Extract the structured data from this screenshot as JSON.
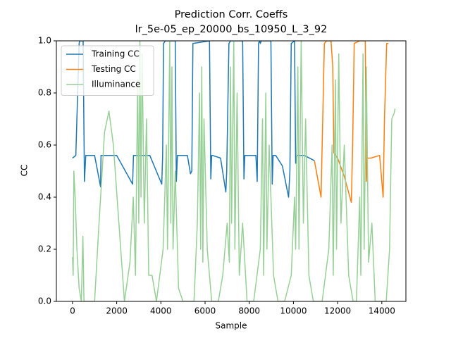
{
  "chart_data": {
    "type": "line",
    "title": "Prediction Corr. Coeffs",
    "subtitle": "lr_5e-05_ep_20000_bs_10950_L_3_92",
    "x_label": "Sample",
    "y_label": "CC",
    "xlim": [
      -730,
      15090
    ],
    "ylim": [
      0,
      1
    ],
    "xticks": [
      0,
      2000,
      4000,
      6000,
      8000,
      10000,
      12000,
      14000
    ],
    "yticks": [
      {
        "value": 0,
        "label": "0.0"
      },
      0.2,
      0.4,
      0.6,
      0.8,
      {
        "value": 1,
        "label": "1.0"
      }
    ],
    "legend": "upper-left",
    "series": [
      {
        "name": "Training CC",
        "color": "#1f77b4",
        "x": [
          0,
          150,
          300,
          330,
          480,
          540,
          600,
          1000,
          1270,
          1290,
          1320,
          2000,
          2720,
          2760,
          2800,
          3500,
          4040,
          4080,
          4120,
          4200,
          4650,
          4700,
          4750,
          5000,
          5200,
          5340,
          5400,
          5450,
          6200,
          6260,
          6300,
          6350,
          6700,
          6940,
          6980,
          7080,
          7150,
          7700,
          7760,
          7800,
          7850,
          8300,
          8360,
          8420,
          8460,
          8500,
          8540,
          8980,
          9040,
          9080,
          9200,
          9500,
          9780,
          9840,
          9900,
          10050,
          10100,
          10150,
          10500,
          10950
        ],
        "values": [
          0.55,
          0.56,
          0.99,
          1,
          1,
          0.46,
          0.56,
          0.56,
          0.44,
          0.56,
          0.56,
          0.56,
          0.45,
          0.56,
          0.56,
          0.56,
          0.45,
          0.56,
          0.99,
          1,
          1,
          0.46,
          0.56,
          0.56,
          0.56,
          0.49,
          0.5,
          0.99,
          1,
          0.47,
          0.56,
          0.56,
          0.55,
          0.42,
          0.5,
          0.99,
          1,
          1,
          0.47,
          0.56,
          0.56,
          0.56,
          0.46,
          0.99,
          1,
          0.99,
          1,
          1,
          0.45,
          0.56,
          0.56,
          0.52,
          0.4,
          0.5,
          0.99,
          1,
          0.53,
          0.56,
          0.56,
          0.54
        ]
      },
      {
        "name": "Testing CC",
        "color": "#ff7f0e",
        "x": [
          10950,
          11100,
          11250,
          11300,
          11400,
          11500,
          11700,
          11780,
          11830,
          12000,
          12300,
          12620,
          12680,
          12750,
          13000,
          13250,
          13300,
          13350,
          13500,
          13900,
          14060,
          14120,
          14220,
          14300
        ],
        "values": [
          0.54,
          0.47,
          0.4,
          0.6,
          0.99,
          1,
          1,
          0.9,
          0.57,
          0.55,
          0.48,
          0.38,
          0.6,
          0.99,
          1,
          1,
          0.46,
          0.55,
          0.55,
          0.56,
          0.4,
          0.7,
          0.99,
          0.99
        ]
      },
      {
        "name": "Illuminance",
        "color": "#96d096",
        "x": [
          0,
          30,
          60,
          120,
          200,
          300,
          400,
          470,
          520,
          1000,
          1200,
          1450,
          1650,
          1850,
          2100,
          2350,
          2600,
          2750,
          2850,
          2950,
          3000,
          3050,
          3100,
          3150,
          3250,
          3350,
          3450,
          3600,
          3800,
          4100,
          4250,
          4300,
          4400,
          4450,
          4500,
          4550,
          4650,
          4800,
          5000,
          5500,
          5650,
          5750,
          5800,
          5850,
          5900,
          5950,
          6100,
          6300,
          6600,
          6800,
          7000,
          7100,
          7150,
          7200,
          7300,
          7350,
          7450,
          7550,
          7700,
          7900,
          8200,
          8500,
          8600,
          8650,
          8750,
          8800,
          8900,
          9100,
          9300,
          9600,
          9900,
          10050,
          10100,
          10200,
          10250,
          10350,
          10450,
          10550,
          10700,
          10900,
          11300,
          11600,
          11750,
          11800,
          11900,
          11950,
          12050,
          12150,
          12300,
          12500,
          12700,
          12850,
          13000,
          13050,
          13150,
          13200,
          13300,
          13400,
          13550,
          13700,
          14200,
          14350,
          14450,
          14550,
          14600
        ],
        "values": [
          0.17,
          0.1,
          0.5,
          0.4,
          0.2,
          0.05,
          0,
          0.25,
          0,
          0,
          0.3,
          0.65,
          0.73,
          0.6,
          0.3,
          0,
          0.15,
          0.4,
          0.1,
          0.85,
          0.3,
          1.0,
          0.4,
          0.95,
          0.3,
          0.7,
          0.1,
          0.1,
          0,
          0.2,
          0.6,
          0.2,
          1.0,
          0.3,
          0.9,
          0.2,
          0.5,
          0.05,
          0,
          0,
          0.3,
          0.8,
          0.2,
          0.9,
          0.15,
          0.7,
          0.2,
          0,
          0,
          0.1,
          0.3,
          0.15,
          0.9,
          0.3,
          1.0,
          0.2,
          0.8,
          0.1,
          0.3,
          0,
          0,
          0.2,
          0.7,
          0.1,
          0.8,
          0.2,
          0.6,
          0.1,
          0,
          0,
          0.1,
          0.4,
          0.2,
          0.9,
          0.2,
          1.0,
          0.3,
          0.7,
          0.1,
          0,
          0,
          0.2,
          0.6,
          0.1,
          0.85,
          0.2,
          0.95,
          0.3,
          0.6,
          0.1,
          0,
          0,
          0.4,
          0.1,
          0.95,
          0.2,
          0.9,
          0.15,
          0.3,
          0,
          0,
          0.2,
          0.7,
          0.72,
          0.74
        ]
      }
    ]
  }
}
